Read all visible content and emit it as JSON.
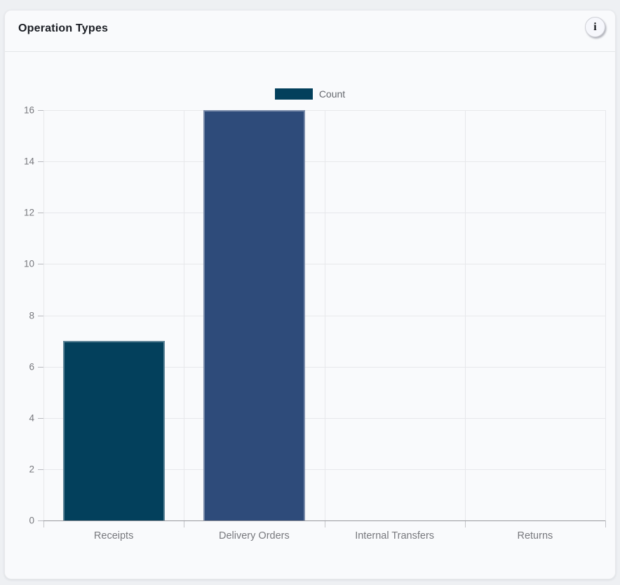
{
  "card": {
    "title": "Operation Types",
    "info_button_glyph": "i"
  },
  "chart_data": {
    "type": "bar",
    "title": "Operation Types",
    "categories": [
      "Receipts",
      "Delivery Orders",
      "Internal Transfers",
      "Returns"
    ],
    "series": [
      {
        "name": "Count",
        "values": [
          7,
          16,
          0,
          0
        ]
      }
    ],
    "bar_colors": [
      "#03405c",
      "#2e4b7a"
    ],
    "ylim": [
      0,
      16
    ],
    "yticks": [
      0,
      2,
      4,
      6,
      8,
      10,
      12,
      14,
      16
    ],
    "xlabel": "",
    "ylabel": "",
    "grid": true,
    "legend_position": "top"
  }
}
